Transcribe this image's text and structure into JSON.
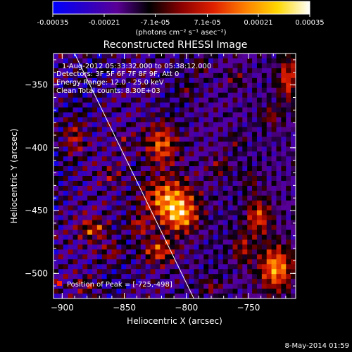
{
  "chart_data": {
    "type": "heatmap",
    "title": "Reconstructed RHESSI Image",
    "xlabel": "Heliocentric X (arcsec)",
    "ylabel": "Heliocentric Y (arcsec)",
    "xlim": [
      -907,
      -712
    ],
    "ylim": [
      -520,
      -325
    ],
    "xticks": [
      -900,
      -850,
      -800,
      -750
    ],
    "yticks": [
      -350,
      -400,
      -450,
      -500
    ],
    "colorbar": {
      "ticks": [
        -0.00035,
        -0.00021,
        -7.1e-05,
        7.1e-05,
        0.00021,
        0.00035
      ],
      "tick_labels": [
        "-0.00035",
        "-0.00021",
        "-7.1e-05",
        "7.1e-05",
        "0.00021",
        "0.00035"
      ],
      "label": "(photons cm⁻² s⁻¹ asec⁻²)",
      "range": [
        -0.00035,
        0.00035
      ],
      "colors": [
        "#0000ff",
        "#2a00c8",
        "#5a0096",
        "#000000",
        "#8a0000",
        "#e02000",
        "#ff8000",
        "#ffd800",
        "#ffffff"
      ]
    },
    "annotations": {
      "time": "1-Aug-2012 05:33:32.000 to 05:38:12.000",
      "detectors": "Detectors: 3F 5F 6F 7F 8F 9F, Att 0",
      "energy": "Energy Range: 12.0 - 25.0 keV",
      "clean": "Clean    Total counts: 8.30E+03",
      "peak": "Position of Peak = [-725,-498]"
    },
    "limb_line": [
      [
        -890,
        -325
      ],
      [
        -794,
        -520
      ]
    ],
    "sources": [
      {
        "x": -820,
        "y": -398,
        "sx": 9,
        "sy": 12,
        "amp": 0.00027
      },
      {
        "x": -815,
        "y": -440,
        "sx": 14,
        "sy": 11,
        "amp": 0.00032
      },
      {
        "x": -805,
        "y": -455,
        "sx": 10,
        "sy": 9,
        "amp": 0.0003
      },
      {
        "x": -822,
        "y": -482,
        "sx": 9,
        "sy": 7,
        "amp": 0.00024
      },
      {
        "x": -838,
        "y": -462,
        "sx": 7,
        "sy": 6,
        "amp": 0.00016
      },
      {
        "x": -728,
        "y": -496,
        "sx": 9,
        "sy": 12,
        "amp": 0.00035
      },
      {
        "x": -742,
        "y": -455,
        "sx": 7,
        "sy": 10,
        "amp": 0.00025
      },
      {
        "x": -755,
        "y": -480,
        "sx": 6,
        "sy": 9,
        "amp": 0.00016
      },
      {
        "x": -875,
        "y": -465,
        "sx": 8,
        "sy": 6,
        "amp": 0.00022
      },
      {
        "x": -860,
        "y": -483,
        "sx": 6,
        "sy": 5,
        "amp": 0.00013
      },
      {
        "x": -890,
        "y": -392,
        "sx": 6,
        "sy": 10,
        "amp": 0.00017
      },
      {
        "x": -860,
        "y": -422,
        "sx": 6,
        "sy": 5,
        "amp": 0.00012
      },
      {
        "x": -718,
        "y": -345,
        "sx": 6,
        "sy": 12,
        "amp": 0.00024
      },
      {
        "x": -732,
        "y": -375,
        "sx": 6,
        "sy": 6,
        "amp": 0.00014
      },
      {
        "x": -760,
        "y": -345,
        "sx": 5,
        "sy": 5,
        "amp": 0.00011
      },
      {
        "x": -790,
        "y": -335,
        "sx": 5,
        "sy": 5,
        "amp": 0.0001
      },
      {
        "x": -760,
        "y": -395,
        "sx": 5,
        "sy": 5,
        "amp": 9e-05
      },
      {
        "x": -773,
        "y": -415,
        "sx": 6,
        "sy": 6,
        "amp": 0.00012
      },
      {
        "x": -800,
        "y": -355,
        "sx": 5,
        "sy": 5,
        "amp": 0.0001
      },
      {
        "x": -780,
        "y": -510,
        "sx": 6,
        "sy": 5,
        "amp": 0.00012
      },
      {
        "x": -880,
        "y": -510,
        "sx": 6,
        "sy": 5,
        "amp": 0.00012
      },
      {
        "x": -748,
        "y": -425,
        "sx": 6,
        "sy": 6,
        "amp": 9e-05
      },
      {
        "x": -850,
        "y": -395,
        "sx": 5,
        "sy": 5,
        "amp": 8e-05
      }
    ]
  },
  "footer": {
    "timestamp": "8-May-2014 01:59"
  }
}
